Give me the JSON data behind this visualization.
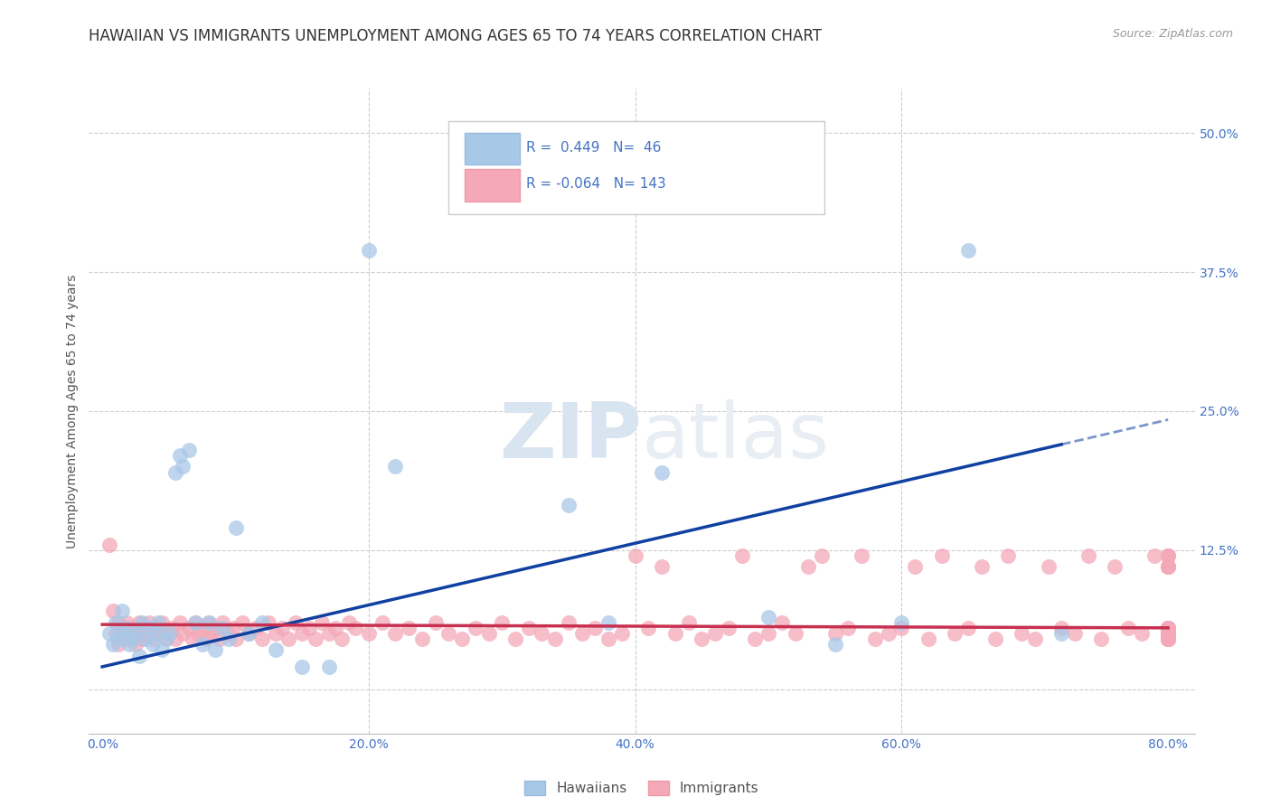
{
  "title": "HAWAIIAN VS IMMIGRANTS UNEMPLOYMENT AMONG AGES 65 TO 74 YEARS CORRELATION CHART",
  "source": "Source: ZipAtlas.com",
  "ylabel": "Unemployment Among Ages 65 to 74 years",
  "right_yticklabels": [
    "",
    "12.5%",
    "25.0%",
    "37.5%",
    "50.0%"
  ],
  "right_ytick_vals": [
    0.0,
    0.125,
    0.25,
    0.375,
    0.5
  ],
  "xlim": [
    0.0,
    0.82
  ],
  "ylim": [
    -0.04,
    0.54
  ],
  "plot_xlim": [
    0.0,
    0.8
  ],
  "hawaiian_R": 0.449,
  "hawaiian_N": 46,
  "immigrant_R": -0.064,
  "immigrant_N": 143,
  "hawaiian_color": "#A8C8E8",
  "immigrant_color": "#F4A8B8",
  "hawaiian_line_color": "#1040A0",
  "immigrant_line_color": "#C83050",
  "watermark_color": "#D8E4F0",
  "background_color": "#FFFFFF",
  "grid_color": "#CCCCCC",
  "title_fontsize": 12,
  "hawaiian_x": [
    0.005,
    0.008,
    0.01,
    0.012,
    0.015,
    0.015,
    0.018,
    0.02,
    0.022,
    0.025,
    0.028,
    0.03,
    0.032,
    0.035,
    0.038,
    0.04,
    0.042,
    0.045,
    0.048,
    0.05,
    0.055,
    0.058,
    0.06,
    0.065,
    0.07,
    0.075,
    0.08,
    0.085,
    0.09,
    0.095,
    0.1,
    0.11,
    0.12,
    0.13,
    0.15,
    0.17,
    0.2,
    0.22,
    0.35,
    0.38,
    0.42,
    0.5,
    0.55,
    0.6,
    0.65,
    0.72
  ],
  "hawaiian_y": [
    0.05,
    0.04,
    0.06,
    0.045,
    0.05,
    0.07,
    0.055,
    0.04,
    0.045,
    0.05,
    0.03,
    0.06,
    0.045,
    0.055,
    0.04,
    0.05,
    0.06,
    0.035,
    0.045,
    0.05,
    0.195,
    0.21,
    0.2,
    0.215,
    0.06,
    0.04,
    0.06,
    0.035,
    0.055,
    0.045,
    0.145,
    0.05,
    0.06,
    0.035,
    0.02,
    0.02,
    0.395,
    0.2,
    0.165,
    0.06,
    0.195,
    0.065,
    0.04,
    0.06,
    0.395,
    0.05
  ],
  "immigrant_x": [
    0.005,
    0.008,
    0.01,
    0.012,
    0.012,
    0.015,
    0.018,
    0.02,
    0.022,
    0.025,
    0.025,
    0.028,
    0.03,
    0.03,
    0.032,
    0.035,
    0.038,
    0.04,
    0.042,
    0.045,
    0.048,
    0.05,
    0.052,
    0.055,
    0.058,
    0.06,
    0.065,
    0.068,
    0.07,
    0.072,
    0.075,
    0.078,
    0.08,
    0.082,
    0.085,
    0.088,
    0.09,
    0.095,
    0.098,
    0.1,
    0.105,
    0.11,
    0.115,
    0.12,
    0.125,
    0.13,
    0.135,
    0.14,
    0.145,
    0.15,
    0.155,
    0.16,
    0.165,
    0.17,
    0.175,
    0.18,
    0.185,
    0.19,
    0.2,
    0.21,
    0.22,
    0.23,
    0.24,
    0.25,
    0.26,
    0.27,
    0.28,
    0.29,
    0.3,
    0.31,
    0.32,
    0.33,
    0.34,
    0.35,
    0.36,
    0.37,
    0.38,
    0.39,
    0.4,
    0.41,
    0.42,
    0.43,
    0.44,
    0.45,
    0.46,
    0.47,
    0.48,
    0.49,
    0.5,
    0.51,
    0.52,
    0.53,
    0.54,
    0.55,
    0.56,
    0.57,
    0.58,
    0.59,
    0.6,
    0.61,
    0.62,
    0.63,
    0.64,
    0.65,
    0.66,
    0.67,
    0.68,
    0.69,
    0.7,
    0.71,
    0.72,
    0.73,
    0.74,
    0.75,
    0.76,
    0.77,
    0.78,
    0.79,
    0.8,
    0.8,
    0.8,
    0.8,
    0.8,
    0.8,
    0.8,
    0.8,
    0.8,
    0.8,
    0.8,
    0.8,
    0.8,
    0.8,
    0.8,
    0.8,
    0.8,
    0.8,
    0.8,
    0.8,
    0.8,
    0.8,
    0.8,
    0.8,
    0.8
  ],
  "immigrant_y": [
    0.13,
    0.07,
    0.05,
    0.04,
    0.06,
    0.05,
    0.06,
    0.045,
    0.055,
    0.05,
    0.04,
    0.06,
    0.055,
    0.045,
    0.05,
    0.06,
    0.045,
    0.055,
    0.05,
    0.06,
    0.045,
    0.05,
    0.055,
    0.045,
    0.06,
    0.05,
    0.055,
    0.045,
    0.06,
    0.05,
    0.055,
    0.045,
    0.06,
    0.05,
    0.055,
    0.045,
    0.06,
    0.05,
    0.055,
    0.045,
    0.06,
    0.05,
    0.055,
    0.045,
    0.06,
    0.05,
    0.055,
    0.045,
    0.06,
    0.05,
    0.055,
    0.045,
    0.06,
    0.05,
    0.055,
    0.045,
    0.06,
    0.055,
    0.05,
    0.06,
    0.05,
    0.055,
    0.045,
    0.06,
    0.05,
    0.045,
    0.055,
    0.05,
    0.06,
    0.045,
    0.055,
    0.05,
    0.045,
    0.06,
    0.05,
    0.055,
    0.045,
    0.05,
    0.12,
    0.055,
    0.11,
    0.05,
    0.06,
    0.045,
    0.05,
    0.055,
    0.12,
    0.045,
    0.05,
    0.06,
    0.05,
    0.11,
    0.12,
    0.05,
    0.055,
    0.12,
    0.045,
    0.05,
    0.055,
    0.11,
    0.045,
    0.12,
    0.05,
    0.055,
    0.11,
    0.045,
    0.12,
    0.05,
    0.045,
    0.11,
    0.055,
    0.05,
    0.12,
    0.045,
    0.11,
    0.055,
    0.05,
    0.12,
    0.045,
    0.055,
    0.11,
    0.05,
    0.045,
    0.12,
    0.055,
    0.05,
    0.11,
    0.045,
    0.055,
    0.12,
    0.05,
    0.045,
    0.11,
    0.055,
    0.05,
    0.045,
    0.12,
    0.055,
    0.05,
    0.11,
    0.045,
    0.055,
    0.05
  ]
}
